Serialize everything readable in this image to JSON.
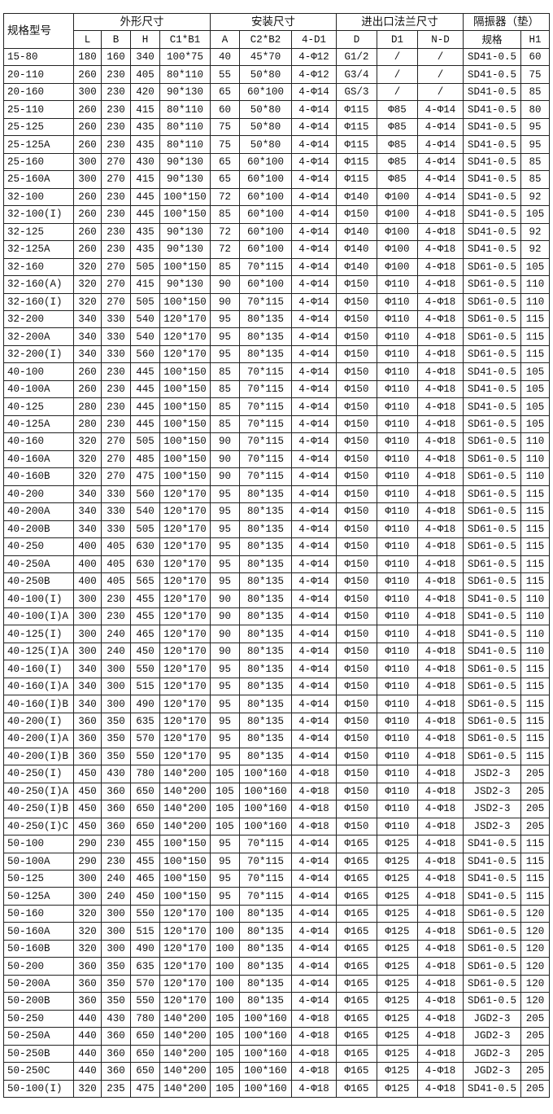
{
  "header": {
    "model": "规格型号",
    "groups": [
      "外形尺寸",
      "安装尺寸",
      "进出口法兰尺寸",
      "隔振器（垫）"
    ],
    "columns": [
      "L",
      "B",
      "H",
      "C1*B1",
      "A",
      "C2*B2",
      "4-D1",
      "D",
      "D1",
      "N-D",
      "规格",
      "H1"
    ]
  },
  "rows": [
    [
      "15-80",
      "180",
      "160",
      "340",
      "100*75",
      "40",
      "45*70",
      "4-Φ12",
      "G1/2",
      "/",
      "/",
      "SD41-0.5",
      "60"
    ],
    [
      "20-110",
      "260",
      "230",
      "405",
      "80*110",
      "55",
      "50*80",
      "4-Φ12",
      "G3/4",
      "/",
      "/",
      "SD41-0.5",
      "75"
    ],
    [
      "20-160",
      "300",
      "230",
      "420",
      "90*130",
      "65",
      "60*100",
      "4-Φ14",
      "GS/3",
      "/",
      "/",
      "SD41-0.5",
      "85"
    ],
    [
      "25-110",
      "260",
      "230",
      "415",
      "80*110",
      "60",
      "50*80",
      "4-Φ14",
      "Φ115",
      "Φ85",
      "4-Φ14",
      "SD41-0.5",
      "80"
    ],
    [
      "25-125",
      "260",
      "230",
      "435",
      "80*110",
      "75",
      "50*80",
      "4-Φ14",
      "Φ115",
      "Φ85",
      "4-Φ14",
      "SD41-0.5",
      "95"
    ],
    [
      "25-125A",
      "260",
      "230",
      "435",
      "80*110",
      "75",
      "50*80",
      "4-Φ14",
      "Φ115",
      "Φ85",
      "4-Φ14",
      "SD41-0.5",
      "95"
    ],
    [
      "25-160",
      "300",
      "270",
      "430",
      "90*130",
      "65",
      "60*100",
      "4-Φ14",
      "Φ115",
      "Φ85",
      "4-Φ14",
      "SD41-0.5",
      "85"
    ],
    [
      "25-160A",
      "300",
      "270",
      "415",
      "90*130",
      "65",
      "60*100",
      "4-Φ14",
      "Φ115",
      "Φ85",
      "4-Φ14",
      "SD41-0.5",
      "85"
    ],
    [
      "32-100",
      "260",
      "230",
      "445",
      "100*150",
      "72",
      "60*100",
      "4-Φ14",
      "Φ140",
      "Φ100",
      "4-Φ14",
      "SD41-0.5",
      "92"
    ],
    [
      "32-100(I)",
      "260",
      "230",
      "445",
      "100*150",
      "85",
      "60*100",
      "4-Φ14",
      "Φ150",
      "Φ100",
      "4-Φ18",
      "SD41-0.5",
      "105"
    ],
    [
      "32-125",
      "260",
      "230",
      "435",
      "90*130",
      "72",
      "60*100",
      "4-Φ14",
      "Φ140",
      "Φ100",
      "4-Φ18",
      "SD41-0.5",
      "92"
    ],
    [
      "32-125A",
      "260",
      "230",
      "435",
      "90*130",
      "72",
      "60*100",
      "4-Φ14",
      "Φ140",
      "Φ100",
      "4-Φ18",
      "SD41-0.5",
      "92"
    ],
    [
      "32-160",
      "320",
      "270",
      "505",
      "100*150",
      "85",
      "70*115",
      "4-Φ14",
      "Φ140",
      "Φ100",
      "4-Φ18",
      "SD61-0.5",
      "105"
    ],
    [
      "32-160(A)",
      "320",
      "270",
      "415",
      "90*130",
      "90",
      "60*100",
      "4-Φ14",
      "Φ150",
      "Φ110",
      "4-Φ18",
      "SD61-0.5",
      "110"
    ],
    [
      "32-160(I)",
      "320",
      "270",
      "505",
      "100*150",
      "90",
      "70*115",
      "4-Φ14",
      "Φ150",
      "Φ110",
      "4-Φ18",
      "SD61-0.5",
      "110"
    ],
    [
      "32-200",
      "340",
      "330",
      "540",
      "120*170",
      "95",
      "80*135",
      "4-Φ14",
      "Φ150",
      "Φ110",
      "4-Φ18",
      "SD61-0.5",
      "115"
    ],
    [
      "32-200A",
      "340",
      "330",
      "540",
      "120*170",
      "95",
      "80*135",
      "4-Φ14",
      "Φ150",
      "Φ110",
      "4-Φ18",
      "SD61-0.5",
      "115"
    ],
    [
      "32-200(I)",
      "340",
      "330",
      "560",
      "120*170",
      "95",
      "80*135",
      "4-Φ14",
      "Φ150",
      "Φ110",
      "4-Φ18",
      "SD61-0.5",
      "115"
    ],
    [
      "40-100",
      "260",
      "230",
      "445",
      "100*150",
      "85",
      "70*115",
      "4-Φ14",
      "Φ150",
      "Φ110",
      "4-Φ18",
      "SD41-0.5",
      "105"
    ],
    [
      "40-100A",
      "260",
      "230",
      "445",
      "100*150",
      "85",
      "70*115",
      "4-Φ14",
      "Φ150",
      "Φ110",
      "4-Φ18",
      "SD41-0.5",
      "105"
    ],
    [
      "40-125",
      "280",
      "230",
      "445",
      "100*150",
      "85",
      "70*115",
      "4-Φ14",
      "Φ150",
      "Φ110",
      "4-Φ18",
      "SD41-0.5",
      "105"
    ],
    [
      "40-125A",
      "280",
      "230",
      "445",
      "100*150",
      "85",
      "70*115",
      "4-Φ14",
      "Φ150",
      "Φ110",
      "4-Φ18",
      "SD61-0.5",
      "105"
    ],
    [
      "40-160",
      "320",
      "270",
      "505",
      "100*150",
      "90",
      "70*115",
      "4-Φ14",
      "Φ150",
      "Φ110",
      "4-Φ18",
      "SD61-0.5",
      "110"
    ],
    [
      "40-160A",
      "320",
      "270",
      "485",
      "100*150",
      "90",
      "70*115",
      "4-Φ14",
      "Φ150",
      "Φ110",
      "4-Φ18",
      "SD61-0.5",
      "110"
    ],
    [
      "40-160B",
      "320",
      "270",
      "475",
      "100*150",
      "90",
      "70*115",
      "4-Φ14",
      "Φ150",
      "Φ110",
      "4-Φ18",
      "SD61-0.5",
      "110"
    ],
    [
      "40-200",
      "340",
      "330",
      "560",
      "120*170",
      "95",
      "80*135",
      "4-Φ14",
      "Φ150",
      "Φ110",
      "4-Φ18",
      "SD61-0.5",
      "115"
    ],
    [
      "40-200A",
      "340",
      "330",
      "540",
      "120*170",
      "95",
      "80*135",
      "4-Φ14",
      "Φ150",
      "Φ110",
      "4-Φ18",
      "SD61-0.5",
      "115"
    ],
    [
      "40-200B",
      "340",
      "330",
      "505",
      "120*170",
      "95",
      "80*135",
      "4-Φ14",
      "Φ150",
      "Φ110",
      "4-Φ18",
      "SD61-0.5",
      "115"
    ],
    [
      "40-250",
      "400",
      "405",
      "630",
      "120*170",
      "95",
      "80*135",
      "4-Φ14",
      "Φ150",
      "Φ110",
      "4-Φ18",
      "SD61-0.5",
      "115"
    ],
    [
      "40-250A",
      "400",
      "405",
      "630",
      "120*170",
      "95",
      "80*135",
      "4-Φ14",
      "Φ150",
      "Φ110",
      "4-Φ18",
      "SD61-0.5",
      "115"
    ],
    [
      "40-250B",
      "400",
      "405",
      "565",
      "120*170",
      "95",
      "80*135",
      "4-Φ14",
      "Φ150",
      "Φ110",
      "4-Φ18",
      "SD61-0.5",
      "115"
    ],
    [
      "40-100(I)",
      "300",
      "230",
      "455",
      "120*170",
      "90",
      "80*135",
      "4-Φ14",
      "Φ150",
      "Φ110",
      "4-Φ18",
      "SD41-0.5",
      "110"
    ],
    [
      "40-100(I)A",
      "300",
      "230",
      "455",
      "120*170",
      "90",
      "80*135",
      "4-Φ14",
      "Φ150",
      "Φ110",
      "4-Φ18",
      "SD41-0.5",
      "110"
    ],
    [
      "40-125(I)",
      "300",
      "240",
      "465",
      "120*170",
      "90",
      "80*135",
      "4-Φ14",
      "Φ150",
      "Φ110",
      "4-Φ18",
      "SD41-0.5",
      "110"
    ],
    [
      "40-125(I)A",
      "300",
      "240",
      "450",
      "120*170",
      "90",
      "80*135",
      "4-Φ14",
      "Φ150",
      "Φ110",
      "4-Φ18",
      "SD41-0.5",
      "110"
    ],
    [
      "40-160(I)",
      "340",
      "300",
      "550",
      "120*170",
      "95",
      "80*135",
      "4-Φ14",
      "Φ150",
      "Φ110",
      "4-Φ18",
      "SD61-0.5",
      "115"
    ],
    [
      "40-160(I)A",
      "340",
      "300",
      "515",
      "120*170",
      "95",
      "80*135",
      "4-Φ14",
      "Φ150",
      "Φ110",
      "4-Φ18",
      "SD61-0.5",
      "115"
    ],
    [
      "40-160(I)B",
      "340",
      "300",
      "490",
      "120*170",
      "95",
      "80*135",
      "4-Φ14",
      "Φ150",
      "Φ110",
      "4-Φ18",
      "SD61-0.5",
      "115"
    ],
    [
      "40-200(I)",
      "360",
      "350",
      "635",
      "120*170",
      "95",
      "80*135",
      "4-Φ14",
      "Φ150",
      "Φ110",
      "4-Φ18",
      "SD61-0.5",
      "115"
    ],
    [
      "40-200(I)A",
      "360",
      "350",
      "570",
      "120*170",
      "95",
      "80*135",
      "4-Φ14",
      "Φ150",
      "Φ110",
      "4-Φ18",
      "SD61-0.5",
      "115"
    ],
    [
      "40-200(I)B",
      "360",
      "350",
      "550",
      "120*170",
      "95",
      "80*135",
      "4-Φ14",
      "Φ150",
      "Φ110",
      "4-Φ18",
      "SD61-0.5",
      "115"
    ],
    [
      "40-250(I)",
      "450",
      "430",
      "780",
      "140*200",
      "105",
      "100*160",
      "4-Φ18",
      "Φ150",
      "Φ110",
      "4-Φ18",
      "JSD2-3",
      "205"
    ],
    [
      "40-250(I)A",
      "450",
      "360",
      "650",
      "140*200",
      "105",
      "100*160",
      "4-Φ18",
      "Φ150",
      "Φ110",
      "4-Φ18",
      "JSD2-3",
      "205"
    ],
    [
      "40-250(I)B",
      "450",
      "360",
      "650",
      "140*200",
      "105",
      "100*160",
      "4-Φ18",
      "Φ150",
      "Φ110",
      "4-Φ18",
      "JSD2-3",
      "205"
    ],
    [
      "40-250(I)C",
      "450",
      "360",
      "650",
      "140*200",
      "105",
      "100*160",
      "4-Φ18",
      "Φ150",
      "Φ110",
      "4-Φ18",
      "JSD2-3",
      "205"
    ],
    [
      "50-100",
      "290",
      "230",
      "455",
      "100*150",
      "95",
      "70*115",
      "4-Φ14",
      "Φ165",
      "Φ125",
      "4-Φ18",
      "SD41-0.5",
      "115"
    ],
    [
      "50-100A",
      "290",
      "230",
      "455",
      "100*150",
      "95",
      "70*115",
      "4-Φ14",
      "Φ165",
      "Φ125",
      "4-Φ18",
      "SD41-0.5",
      "115"
    ],
    [
      "50-125",
      "300",
      "240",
      "465",
      "100*150",
      "95",
      "70*115",
      "4-Φ14",
      "Φ165",
      "Φ125",
      "4-Φ18",
      "SD41-0.5",
      "115"
    ],
    [
      "50-125A",
      "300",
      "240",
      "450",
      "100*150",
      "95",
      "70*115",
      "4-Φ14",
      "Φ165",
      "Φ125",
      "4-Φ18",
      "SD41-0.5",
      "115"
    ],
    [
      "50-160",
      "320",
      "300",
      "550",
      "120*170",
      "100",
      "80*135",
      "4-Φ14",
      "Φ165",
      "Φ125",
      "4-Φ18",
      "SD61-0.5",
      "120"
    ],
    [
      "50-160A",
      "320",
      "300",
      "515",
      "120*170",
      "100",
      "80*135",
      "4-Φ14",
      "Φ165",
      "Φ125",
      "4-Φ18",
      "SD61-0.5",
      "120"
    ],
    [
      "50-160B",
      "320",
      "300",
      "490",
      "120*170",
      "100",
      "80*135",
      "4-Φ14",
      "Φ165",
      "Φ125",
      "4-Φ18",
      "SD61-0.5",
      "120"
    ],
    [
      "50-200",
      "360",
      "350",
      "635",
      "120*170",
      "100",
      "80*135",
      "4-Φ14",
      "Φ165",
      "Φ125",
      "4-Φ18",
      "SD61-0.5",
      "120"
    ],
    [
      "50-200A",
      "360",
      "350",
      "570",
      "120*170",
      "100",
      "80*135",
      "4-Φ14",
      "Φ165",
      "Φ125",
      "4-Φ18",
      "SD61-0.5",
      "120"
    ],
    [
      "50-200B",
      "360",
      "350",
      "550",
      "120*170",
      "100",
      "80*135",
      "4-Φ14",
      "Φ165",
      "Φ125",
      "4-Φ18",
      "SD61-0.5",
      "120"
    ],
    [
      "50-250",
      "440",
      "430",
      "780",
      "140*200",
      "105",
      "100*160",
      "4-Φ18",
      "Φ165",
      "Φ125",
      "4-Φ18",
      "JGD2-3",
      "205"
    ],
    [
      "50-250A",
      "440",
      "360",
      "650",
      "140*200",
      "105",
      "100*160",
      "4-Φ18",
      "Φ165",
      "Φ125",
      "4-Φ18",
      "JGD2-3",
      "205"
    ],
    [
      "50-250B",
      "440",
      "360",
      "650",
      "140*200",
      "105",
      "100*160",
      "4-Φ18",
      "Φ165",
      "Φ125",
      "4-Φ18",
      "JGD2-3",
      "205"
    ],
    [
      "50-250C",
      "440",
      "360",
      "650",
      "140*200",
      "105",
      "100*160",
      "4-Φ18",
      "Φ165",
      "Φ125",
      "4-Φ18",
      "JGD2-3",
      "205"
    ],
    [
      "50-100(I)",
      "320",
      "235",
      "475",
      "140*200",
      "105",
      "100*160",
      "4-Φ18",
      "Φ165",
      "Φ125",
      "4-Φ18",
      "SD41-0.5",
      "205"
    ]
  ]
}
